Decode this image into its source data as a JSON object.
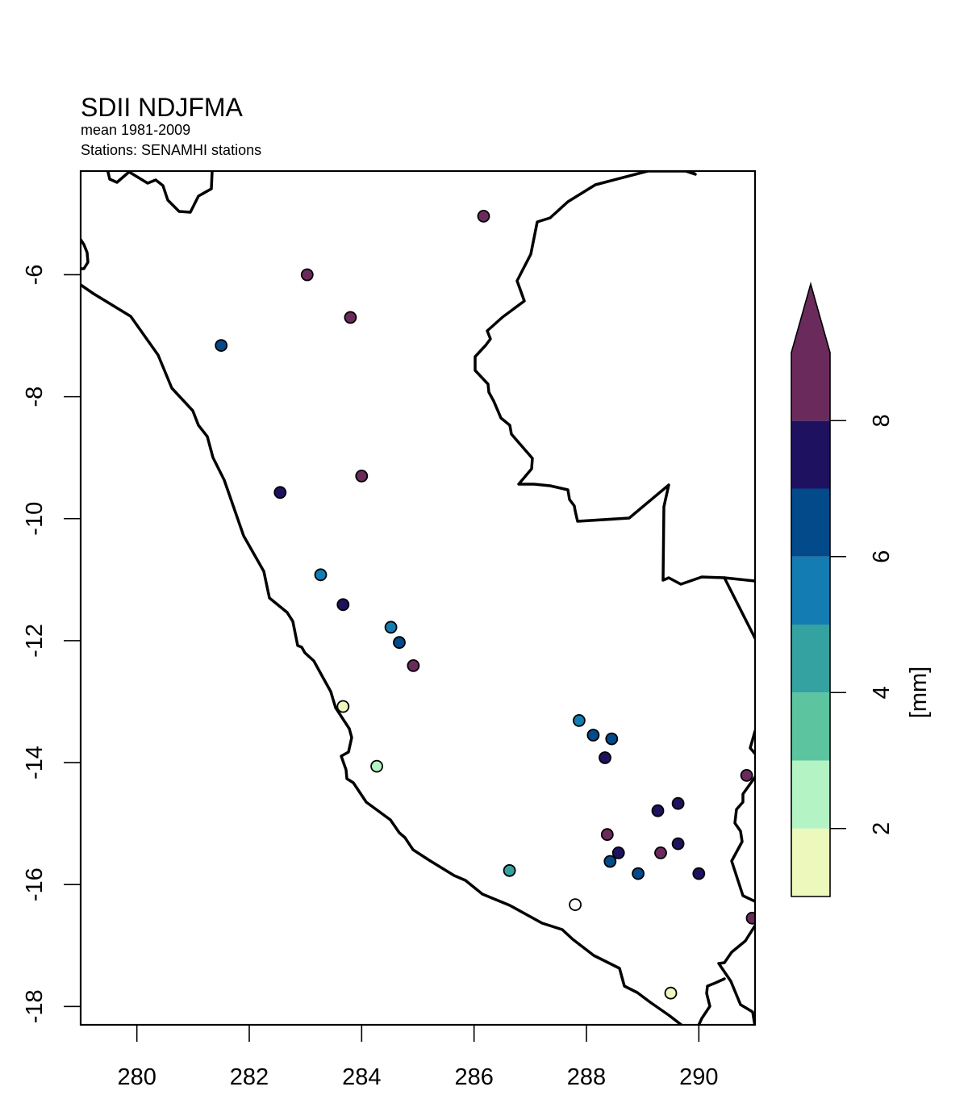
{
  "title": "SDII NDJFMA",
  "subtitle_1": "mean 1981-2009",
  "subtitle_2": "Stations: SENAMHI stations",
  "chart_data": {
    "type": "scatter",
    "map_type": "station point map",
    "xlim": [
      279,
      291
    ],
    "ylim": [
      -18.3,
      -4.3
    ],
    "x_ticks": [
      280,
      282,
      284,
      286,
      288,
      290
    ],
    "x_tick_labels": [
      "280",
      "282",
      "284",
      "286",
      "288",
      "290"
    ],
    "y_ticks": [
      -6,
      -8,
      -10,
      -12,
      -14,
      -16,
      -18
    ],
    "y_tick_labels": [
      "-6",
      "-8",
      "-10",
      "-12",
      "-14",
      "-16",
      "-18"
    ],
    "grid": false,
    "legend": "right colorbar",
    "colorbar": {
      "label": "[mm]",
      "breaks": [
        1,
        2,
        3,
        4,
        5,
        6,
        7,
        8,
        9
      ],
      "tick_values": [
        2,
        4,
        6,
        8
      ],
      "tick_labels": [
        "2",
        "4",
        "6",
        "8"
      ],
      "colors": [
        "#EDF8BD",
        "#B4F4C4",
        "#5CC5A0",
        "#34A2A0",
        "#137CB3",
        "#034A8A",
        "#1E1260",
        "#6A2B5C"
      ],
      "over_color": "#6A2B5C",
      "extend": "max"
    },
    "stations": [
      {
        "lon": 286.17,
        "lat": -5.04,
        "value": 8.5
      },
      {
        "lon": 283.03,
        "lat": -6.0,
        "value": 8.5
      },
      {
        "lon": 283.8,
        "lat": -6.7,
        "value": 8.5
      },
      {
        "lon": 281.5,
        "lat": -7.16,
        "value": 6.5
      },
      {
        "lon": 284.0,
        "lat": -9.3,
        "value": 8.5
      },
      {
        "lon": 282.55,
        "lat": -9.57,
        "value": 7.5
      },
      {
        "lon": 283.27,
        "lat": -10.92,
        "value": 5.5
      },
      {
        "lon": 283.67,
        "lat": -11.41,
        "value": 7.5
      },
      {
        "lon": 284.52,
        "lat": -11.78,
        "value": 5.5
      },
      {
        "lon": 284.67,
        "lat": -12.03,
        "value": 6.5
      },
      {
        "lon": 284.92,
        "lat": -12.41,
        "value": 8.5
      },
      {
        "lon": 283.67,
        "lat": -13.08,
        "value": 1.5
      },
      {
        "lon": 284.27,
        "lat": -14.06,
        "value": 2.5
      },
      {
        "lon": 287.87,
        "lat": -13.31,
        "value": 5.5
      },
      {
        "lon": 288.12,
        "lat": -13.55,
        "value": 6.5
      },
      {
        "lon": 288.45,
        "lat": -13.61,
        "value": 6.5
      },
      {
        "lon": 288.33,
        "lat": -13.92,
        "value": 7.5
      },
      {
        "lon": 290.85,
        "lat": -14.21,
        "value": 8.5
      },
      {
        "lon": 289.63,
        "lat": -14.67,
        "value": 7.5
      },
      {
        "lon": 289.27,
        "lat": -14.79,
        "value": 7.5
      },
      {
        "lon": 288.37,
        "lat": -15.18,
        "value": 8.5
      },
      {
        "lon": 289.63,
        "lat": -15.33,
        "value": 7.5
      },
      {
        "lon": 288.57,
        "lat": -15.48,
        "value": 7.5
      },
      {
        "lon": 289.32,
        "lat": -15.48,
        "value": 8.5
      },
      {
        "lon": 288.42,
        "lat": -15.62,
        "value": 6.5
      },
      {
        "lon": 288.92,
        "lat": -15.82,
        "value": 6.5
      },
      {
        "lon": 290.0,
        "lat": -15.82,
        "value": 7.5
      },
      {
        "lon": 286.63,
        "lat": -15.77,
        "value": 4.5
      },
      {
        "lon": 287.8,
        "lat": -16.33,
        "value": 0.5
      },
      {
        "lon": 290.95,
        "lat": -16.55,
        "value": 8.5
      },
      {
        "lon": 289.5,
        "lat": -17.78,
        "value": 1.5
      }
    ]
  }
}
